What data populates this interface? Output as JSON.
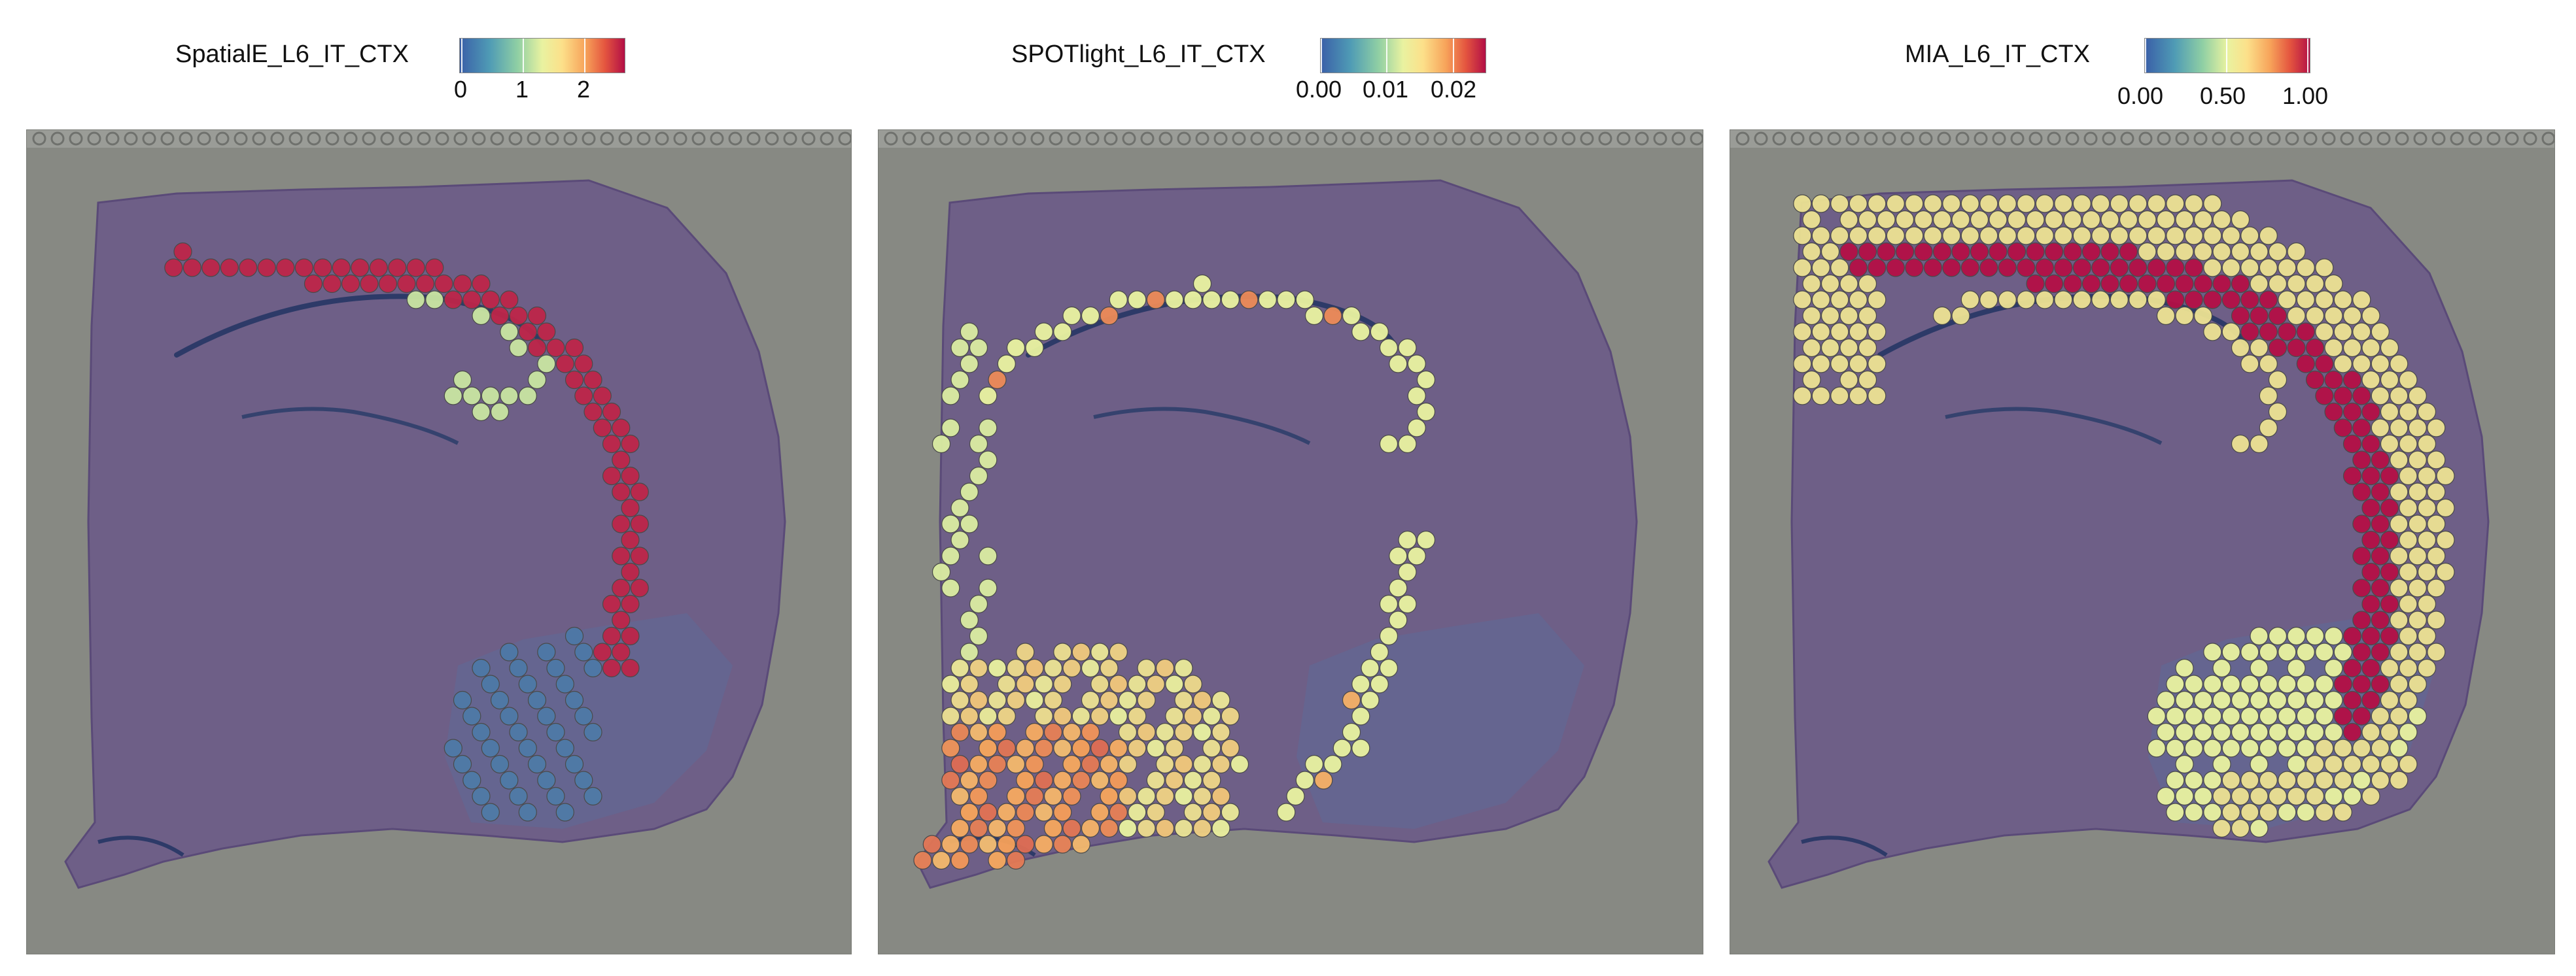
{
  "chart_data": [
    {
      "type": "scatter",
      "title": "SpatialE_L6_IT_CTX",
      "legend": {
        "title": "SpatialE_L6_IT_CTX",
        "ticks": [
          "0",
          "1",
          "2"
        ],
        "range": [
          0,
          2.7
        ],
        "placement": "top"
      },
      "colors": [
        "#3a5fa8",
        "#8fcfa4",
        "#e9f2a0",
        "#f7a35a",
        "#b30f46"
      ],
      "regions": [
        {
          "name": "L6 cortex band",
          "value": 2.6
        },
        {
          "name": "hippocampal arc",
          "value": 1.1
        },
        {
          "name": "striatal patch",
          "value": 0.2
        }
      ]
    },
    {
      "type": "scatter",
      "title": "SPOTlight_L6_IT_CTX",
      "legend": {
        "title": "SPOTlight_L6_IT_CTX",
        "ticks": [
          "0.00",
          "0.01",
          "0.02"
        ],
        "range": [
          0,
          0.024
        ],
        "placement": "top"
      },
      "colors": [
        "#3a5fa8",
        "#8fcfa4",
        "#e9f2a0",
        "#f7a35a",
        "#b30f46"
      ],
      "regions": [
        {
          "name": "hippocampal ring",
          "value": 0.012
        },
        {
          "name": "lower-left cluster",
          "value": 0.016
        },
        {
          "name": "lateral streak",
          "value": 0.013
        }
      ]
    },
    {
      "type": "scatter",
      "title": "MIA_L6_IT_CTX",
      "legend": {
        "title": "MIA_L6_IT_CTX",
        "ticks": [
          "0.00",
          "0.50",
          "1.00"
        ],
        "range": [
          0,
          1.0
        ],
        "placement": "top"
      },
      "colors": [
        "#3a5fa8",
        "#8fcfa4",
        "#e9f2a0",
        "#f7a35a",
        "#b30f46"
      ],
      "regions": [
        {
          "name": "outer cortex band",
          "value": 0.55
        },
        {
          "name": "deep cortex band",
          "value": 1.0
        },
        {
          "name": "hippocampal arc",
          "value": 0.55
        },
        {
          "name": "striatum",
          "value": 0.55
        }
      ]
    }
  ]
}
